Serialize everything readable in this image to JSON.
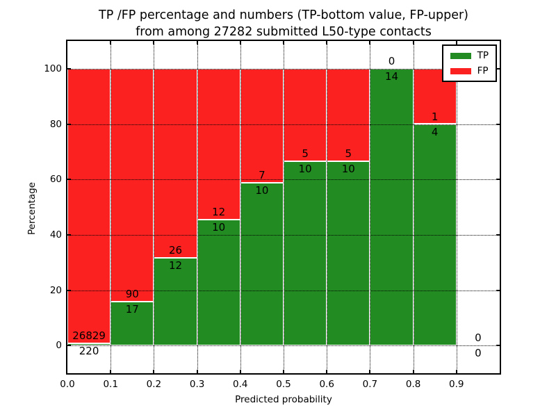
{
  "chart_data": {
    "type": "bar",
    "stacked": true,
    "units": "percent",
    "title_line1": "TP /FP percentage and numbers (TP-bottom value, FP-upper)",
    "title_line2": "from among 27282 submitted L50-type contacts",
    "total_contacts": 27282,
    "xlabel": "Predicted probability",
    "ylabel": "Percentage",
    "x_ticks": [
      "0.0",
      "0.1",
      "0.2",
      "0.3",
      "0.4",
      "0.5",
      "0.6",
      "0.7",
      "0.8",
      "0.9"
    ],
    "y_ticks": [
      0,
      20,
      40,
      60,
      80,
      100
    ],
    "xlim": [
      0.0,
      1.0
    ],
    "ylim": [
      -10,
      110
    ],
    "bin_width": 0.1,
    "grid": true,
    "series": [
      {
        "name": "TP",
        "color": "#228b22"
      },
      {
        "name": "FP",
        "color": "#fc2121"
      }
    ],
    "bins": [
      {
        "x_start": 0.0,
        "tp": 220,
        "fp": 26829,
        "tp_pct": 0.81
      },
      {
        "x_start": 0.1,
        "tp": 17,
        "fp": 90,
        "tp_pct": 15.89
      },
      {
        "x_start": 0.2,
        "tp": 12,
        "fp": 26,
        "tp_pct": 31.58
      },
      {
        "x_start": 0.3,
        "tp": 10,
        "fp": 12,
        "tp_pct": 45.45
      },
      {
        "x_start": 0.4,
        "tp": 10,
        "fp": 7,
        "tp_pct": 58.82
      },
      {
        "x_start": 0.5,
        "tp": 10,
        "fp": 5,
        "tp_pct": 66.67
      },
      {
        "x_start": 0.6,
        "tp": 10,
        "fp": 5,
        "tp_pct": 66.67
      },
      {
        "x_start": 0.7,
        "tp": 14,
        "fp": 0,
        "tp_pct": 100.0
      },
      {
        "x_start": 0.8,
        "tp": 4,
        "fp": 1,
        "tp_pct": 80.0
      },
      {
        "x_start": 0.9,
        "tp": 0,
        "fp": 0,
        "tp_pct": 0.0
      }
    ],
    "legend": {
      "position": "upper-right",
      "entries": [
        {
          "label": "TP",
          "color": "#228b22"
        },
        {
          "label": "FP",
          "color": "#fc2121"
        }
      ]
    }
  }
}
